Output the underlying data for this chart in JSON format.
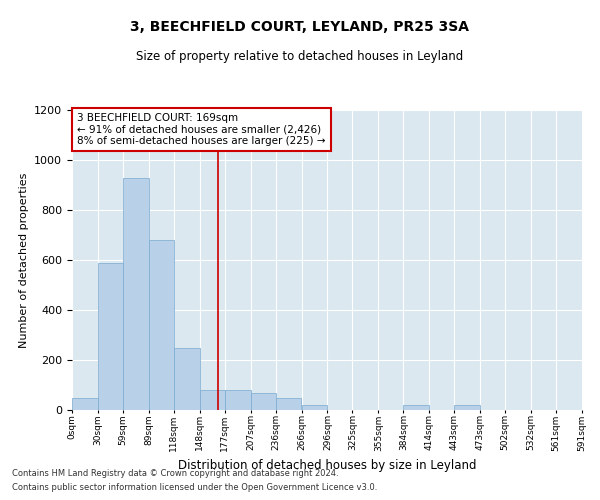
{
  "title": "3, BEECHFIELD COURT, LEYLAND, PR25 3SA",
  "subtitle": "Size of property relative to detached houses in Leyland",
  "xlabel": "Distribution of detached houses by size in Leyland",
  "ylabel": "Number of detached properties",
  "footnote1": "Contains HM Land Registry data © Crown copyright and database right 2024.",
  "footnote2": "Contains public sector information licensed under the Open Government Licence v3.0.",
  "bar_color": "#b8d0e8",
  "bar_edge_color": "#7aaad0",
  "background_color": "#dce8f0",
  "annotation_box_color": "#cc0000",
  "vline_color": "#cc0000",
  "vline_x": 169,
  "annotation_line1": "3 BEECHFIELD COURT: 169sqm",
  "annotation_line2": "← 91% of detached houses are smaller (2,426)",
  "annotation_line3": "8% of semi-detached houses are larger (225) →",
  "bins": [
    0,
    30,
    59,
    89,
    118,
    148,
    177,
    207,
    236,
    266,
    296,
    325,
    355,
    384,
    414,
    443,
    473,
    502,
    532,
    561,
    591
  ],
  "bin_labels": [
    "0sqm",
    "30sqm",
    "59sqm",
    "89sqm",
    "118sqm",
    "148sqm",
    "177sqm",
    "207sqm",
    "236sqm",
    "266sqm",
    "296sqm",
    "325sqm",
    "355sqm",
    "384sqm",
    "414sqm",
    "443sqm",
    "473sqm",
    "502sqm",
    "532sqm",
    "561sqm",
    "591sqm"
  ],
  "counts": [
    50,
    590,
    930,
    680,
    250,
    80,
    80,
    70,
    50,
    20,
    0,
    0,
    0,
    20,
    0,
    20,
    0,
    0,
    0,
    0
  ],
  "ylim": [
    0,
    1200
  ],
  "yticks": [
    0,
    200,
    400,
    600,
    800,
    1000,
    1200
  ]
}
